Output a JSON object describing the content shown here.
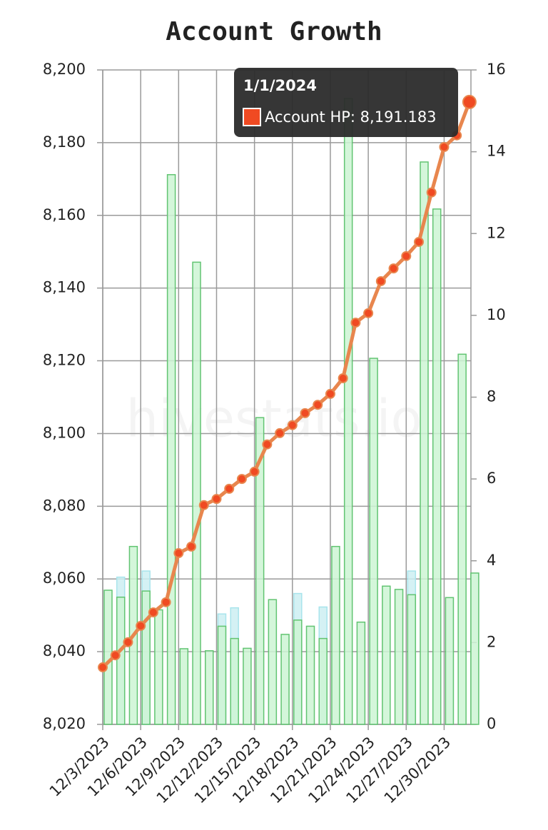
{
  "chart_data": {
    "type": "bar",
    "title": "Account Growth",
    "watermark": "hivestats.io",
    "categories": [
      "12/3/2023",
      null,
      null,
      "12/6/2023",
      null,
      null,
      "12/9/2023",
      null,
      null,
      "12/12/2023",
      null,
      null,
      "12/15/2023",
      null,
      null,
      "12/18/2023",
      null,
      null,
      "12/21/2023",
      null,
      null,
      "12/24/2023",
      null,
      null,
      "12/27/2023",
      null,
      null,
      "12/30/2023",
      null,
      null
    ],
    "series": [
      {
        "type": "bar",
        "axis": "y2",
        "color": "#62c472",
        "values": [
          null,
          3.6,
          null,
          3.75,
          null,
          null,
          null,
          null,
          null,
          2.7,
          2.85,
          null,
          null,
          null,
          null,
          3.2,
          null,
          2.87,
          null,
          null,
          null,
          null,
          null,
          null,
          3.75,
          null,
          null,
          null,
          null,
          null
        ],
        "fillColor": "#cdeff2",
        "strokeColor": "#a8e4ec"
      },
      {
        "type": "bar",
        "axis": "y2",
        "color": "#62c472",
        "values": [
          3.28,
          3.11,
          4.35,
          3.26,
          2.8,
          13.44,
          1.85,
          11.3,
          1.8,
          2.4,
          2.1,
          1.86,
          7.5,
          3.05,
          2.2,
          2.55,
          2.4,
          2.1,
          4.35,
          15.3,
          2.5,
          8.95,
          3.38,
          3.3,
          3.17,
          13.75,
          12.6,
          3.1,
          9.05,
          3.7
        ],
        "fillColor": "#cdf5d4",
        "strokeColor": "#62c472"
      },
      {
        "type": "line",
        "name": "Account HP",
        "color": "#e8864e",
        "pointColor": "#f04a22",
        "values": [
          8035.7,
          8039.0,
          8042.6,
          8047.1,
          8050.8,
          8053.6,
          8067.1,
          8068.9,
          8080.3,
          8082.0,
          8084.8,
          8087.5,
          8089.5,
          8097.0,
          8100.1,
          8102.3,
          8105.6,
          8107.9,
          8110.9,
          8115.2,
          8130.5,
          8133.1,
          8141.9,
          8145.4,
          8148.8,
          8152.7,
          8166.3,
          8178.8,
          8182.0,
          8191.183
        ]
      }
    ],
    "ylim": [
      8020,
      8200
    ],
    "yticks": [
      {
        "value": 8020,
        "label": "8,020"
      },
      {
        "value": 8040,
        "label": "8,040"
      },
      {
        "value": 8060,
        "label": "8,060"
      },
      {
        "value": 8080,
        "label": "8,080"
      },
      {
        "value": 8100,
        "label": "8,100"
      },
      {
        "value": 8120,
        "label": "8,120"
      },
      {
        "value": 8140,
        "label": "8,140"
      },
      {
        "value": 8160,
        "label": "8,160"
      },
      {
        "value": 8180,
        "label": "8,180"
      },
      {
        "value": 8200,
        "label": "8,200"
      }
    ],
    "y2lim": [
      0,
      16
    ],
    "y2ticks": [
      0,
      2,
      4,
      6,
      8,
      10,
      12,
      14,
      16
    ],
    "grid": true,
    "tooltip": {
      "title": "1/1/2024",
      "text": "Account HP: 8,191.183"
    }
  }
}
